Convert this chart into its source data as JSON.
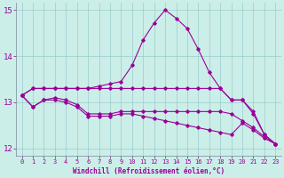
{
  "xlabel": "Windchill (Refroidissement éolien,°C)",
  "bg_color": "#cceee8",
  "line_color": "#990099",
  "grid_color": "#99cccc",
  "xlim": [
    -0.5,
    23.5
  ],
  "ylim": [
    11.85,
    15.15
  ],
  "xticks": [
    0,
    1,
    2,
    3,
    4,
    5,
    6,
    7,
    8,
    9,
    10,
    11,
    12,
    13,
    14,
    15,
    16,
    17,
    18,
    19,
    20,
    21,
    22,
    23
  ],
  "yticks": [
    12,
    13,
    14,
    15
  ],
  "lines": [
    {
      "x": [
        0,
        1,
        2,
        3,
        4,
        5,
        6,
        7,
        8,
        9,
        10,
        11,
        12,
        13,
        14,
        15,
        16,
        17,
        18,
        19,
        20,
        21,
        22,
        23
      ],
      "y": [
        13.15,
        13.3,
        13.3,
        13.3,
        13.3,
        13.3,
        13.3,
        13.35,
        13.4,
        13.45,
        13.8,
        14.35,
        14.72,
        15.0,
        14.82,
        14.6,
        14.15,
        13.65,
        13.3,
        13.05,
        13.05,
        12.8,
        12.3,
        12.1
      ]
    },
    {
      "x": [
        0,
        1,
        2,
        3,
        4,
        5,
        6,
        7,
        8,
        9,
        10,
        11,
        12,
        13,
        14,
        15,
        16,
        17,
        18,
        19,
        20,
        21,
        22,
        23
      ],
      "y": [
        13.15,
        13.3,
        13.3,
        13.3,
        13.3,
        13.3,
        13.3,
        13.3,
        13.3,
        13.3,
        13.3,
        13.3,
        13.3,
        13.3,
        13.3,
        13.3,
        13.3,
        13.3,
        13.3,
        13.05,
        13.05,
        12.75,
        12.3,
        12.1
      ]
    },
    {
      "x": [
        0,
        1,
        2,
        3,
        4,
        5,
        6,
        7,
        8,
        9,
        10,
        11,
        12,
        13,
        14,
        15,
        16,
        17,
        18,
        19,
        20,
        21,
        22,
        23
      ],
      "y": [
        13.15,
        12.9,
        13.05,
        13.1,
        13.05,
        12.95,
        12.75,
        12.75,
        12.75,
        12.8,
        12.8,
        12.8,
        12.8,
        12.8,
        12.8,
        12.8,
        12.8,
        12.8,
        12.8,
        12.75,
        12.6,
        12.45,
        12.25,
        12.1
      ]
    },
    {
      "x": [
        0,
        1,
        2,
        3,
        4,
        5,
        6,
        7,
        8,
        9,
        10,
        11,
        12,
        13,
        14,
        15,
        16,
        17,
        18,
        19,
        20,
        21,
        22,
        23
      ],
      "y": [
        13.15,
        12.9,
        13.05,
        13.05,
        13.0,
        12.9,
        12.7,
        12.7,
        12.7,
        12.75,
        12.75,
        12.7,
        12.65,
        12.6,
        12.55,
        12.5,
        12.45,
        12.4,
        12.35,
        12.3,
        12.55,
        12.4,
        12.22,
        12.1
      ]
    }
  ]
}
